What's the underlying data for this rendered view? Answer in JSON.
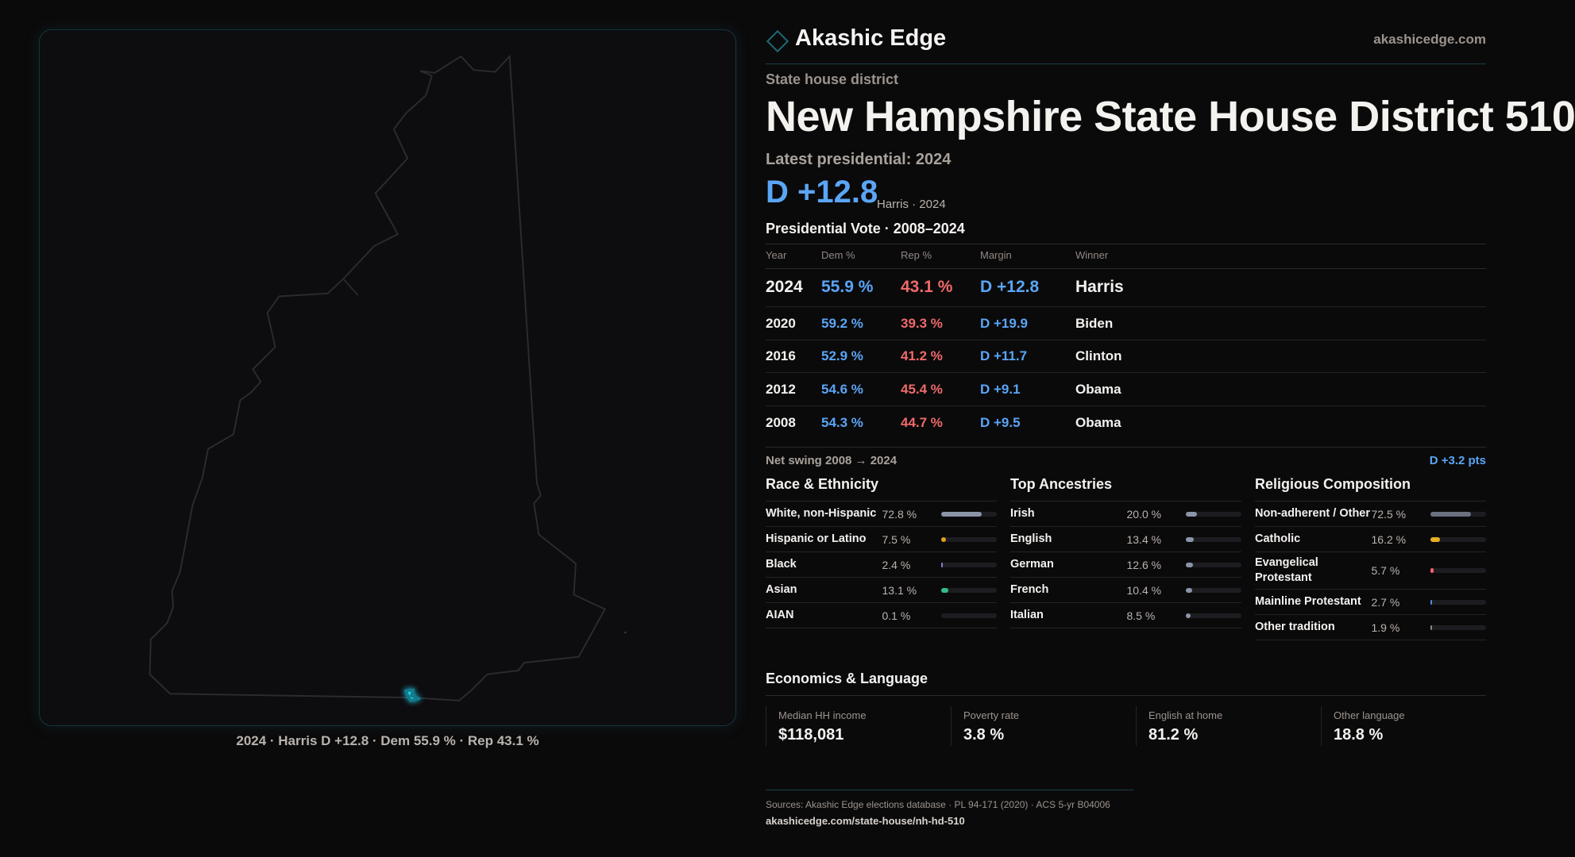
{
  "brand": {
    "name": "Akashic Edge",
    "site": "akashicedge.com"
  },
  "kicker": "State house district",
  "title": "New Hampshire State House District 510",
  "latest": "Latest presidential: 2024",
  "headline": {
    "margin": "D +12.8",
    "sub": "Harris · 2024"
  },
  "map": {
    "caption": "2024 · Harris D +12.8 · Dem 55.9 % · Rep 43.1 %",
    "highlight_color": "#1fd0ee",
    "outline_color": "#2b2b2e"
  },
  "table": {
    "title": "Presidential Vote · 2008–2024",
    "headers": [
      "Year",
      "Dem %",
      "Rep %",
      "Margin",
      "Winner"
    ],
    "rows": [
      {
        "year": "2024",
        "dem": "55.9 %",
        "rep": "43.1 %",
        "margin": "D +12.8",
        "winner": "Harris"
      },
      {
        "year": "2020",
        "dem": "59.2 %",
        "rep": "39.3 %",
        "margin": "D +19.9",
        "winner": "Biden"
      },
      {
        "year": "2016",
        "dem": "52.9 %",
        "rep": "41.2 %",
        "margin": "D +11.7",
        "winner": "Clinton"
      },
      {
        "year": "2012",
        "dem": "54.6 %",
        "rep": "45.4 %",
        "margin": "D +9.1",
        "winner": "Obama"
      },
      {
        "year": "2008",
        "dem": "54.3 %",
        "rep": "44.7 %",
        "margin": "D +9.5",
        "winner": "Obama"
      }
    ]
  },
  "swing": {
    "label": "Net swing 2008 → 2024",
    "value": "D +3.2 pts"
  },
  "race": {
    "title": "Race & Ethnicity",
    "items": [
      {
        "label": "White, non-Hispanic",
        "pct": "72.8 %",
        "value": 72.8,
        "color": "#8a95a8"
      },
      {
        "label": "Hispanic or Latino",
        "pct": "7.5 %",
        "value": 7.5,
        "color": "#e0a020"
      },
      {
        "label": "Black",
        "pct": "2.4 %",
        "value": 2.4,
        "color": "#8a7fd0"
      },
      {
        "label": "Asian",
        "pct": "13.1 %",
        "value": 13.1,
        "color": "#2fbf8a"
      },
      {
        "label": "AIAN",
        "pct": "0.1 %",
        "value": 0.1,
        "color": "#555"
      }
    ]
  },
  "ancestry": {
    "title": "Top Ancestries",
    "items": [
      {
        "label": "Irish",
        "pct": "20.0 %",
        "value": 20.0,
        "color": "#8a95a8"
      },
      {
        "label": "English",
        "pct": "13.4 %",
        "value": 13.4,
        "color": "#8a95a8"
      },
      {
        "label": "German",
        "pct": "12.6 %",
        "value": 12.6,
        "color": "#8a95a8"
      },
      {
        "label": "French",
        "pct": "10.4 %",
        "value": 10.4,
        "color": "#8a95a8"
      },
      {
        "label": "Italian",
        "pct": "8.5 %",
        "value": 8.5,
        "color": "#8a95a8"
      }
    ]
  },
  "religion": {
    "title": "Religious Composition",
    "items": [
      {
        "label": "Non-adherent / Other",
        "pct": "72.5 %",
        "value": 72.5,
        "color": "#6b7180"
      },
      {
        "label": "Catholic",
        "pct": "16.2 %",
        "value": 16.2,
        "color": "#e5b020"
      },
      {
        "label": "Evangelical Protestant",
        "pct": "5.7 %",
        "value": 5.7,
        "color": "#f0606a"
      },
      {
        "label": "Mainline Protestant",
        "pct": "2.7 %",
        "value": 2.7,
        "color": "#4a90e2"
      },
      {
        "label": "Other tradition",
        "pct": "1.9 %",
        "value": 1.9,
        "color": "#888888"
      }
    ]
  },
  "economics": {
    "title": "Economics & Language",
    "cards": [
      {
        "label": "Median HH income",
        "value": "$118,081"
      },
      {
        "label": "Poverty rate",
        "value": "3.8 %"
      },
      {
        "label": "English at home",
        "value": "81.2 %"
      },
      {
        "label": "Other language",
        "value": "18.8 %"
      }
    ]
  },
  "footer": {
    "sources": "Sources: Akashic Edge elections database · PL 94-171 (2020) · ACS 5-yr B04006",
    "url": "akashicedge.com/state-house/nh-hd-510"
  }
}
